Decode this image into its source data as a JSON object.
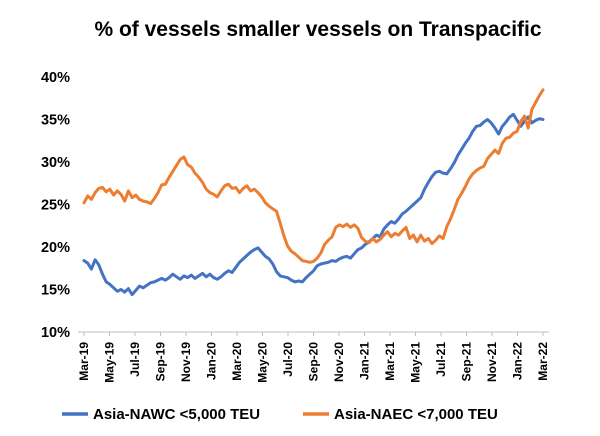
{
  "chart_data": {
    "type": "line",
    "title": "% of vessels smaller vessels on Transpacific",
    "xlabel": "",
    "ylabel": "",
    "ylim": [
      10,
      40
    ],
    "y_ticks": [
      "10%",
      "15%",
      "20%",
      "25%",
      "30%",
      "35%",
      "40%"
    ],
    "y_tick_values": [
      10,
      15,
      20,
      25,
      30,
      35,
      40
    ],
    "x_ticks": [
      "Mar-19",
      "May-19",
      "Jul-19",
      "Sep-19",
      "Nov-19",
      "Jan-20",
      "Mar-20",
      "May-20",
      "Jul-20",
      "Sep-20",
      "Nov-20",
      "Jan-21",
      "Mar-21",
      "May-21",
      "Jul-21",
      "Sep-21",
      "Nov-21",
      "Jan-22",
      "Mar-22"
    ],
    "x_unit": "weeks since Mar-19",
    "grid": false,
    "legend_position": "bottom",
    "series": [
      {
        "name": "Asia-NAWC <5,000 TEU",
        "color": "#4472C4",
        "points": [
          [
            0,
            18.4
          ],
          [
            1,
            18.1
          ],
          [
            2,
            17.4
          ],
          [
            3,
            18.5
          ],
          [
            4,
            17.9
          ],
          [
            5,
            16.8
          ],
          [
            6,
            15.9
          ],
          [
            7,
            15.6
          ],
          [
            8,
            15.2
          ],
          [
            9,
            14.8
          ],
          [
            10,
            15.0
          ],
          [
            11,
            14.7
          ],
          [
            12,
            15.1
          ],
          [
            13,
            14.4
          ],
          [
            14,
            14.9
          ],
          [
            15,
            15.4
          ],
          [
            16,
            15.2
          ],
          [
            17,
            15.5
          ],
          [
            18,
            15.8
          ],
          [
            19,
            15.9
          ],
          [
            20,
            16.1
          ],
          [
            21,
            16.3
          ],
          [
            22,
            16.1
          ],
          [
            23,
            16.4
          ],
          [
            24,
            16.8
          ],
          [
            25,
            16.5
          ],
          [
            26,
            16.2
          ],
          [
            27,
            16.6
          ],
          [
            28,
            16.4
          ],
          [
            29,
            16.7
          ],
          [
            30,
            16.3
          ],
          [
            31,
            16.6
          ],
          [
            32,
            16.9
          ],
          [
            33,
            16.5
          ],
          [
            34,
            16.8
          ],
          [
            35,
            16.4
          ],
          [
            36,
            16.2
          ],
          [
            37,
            16.5
          ],
          [
            38,
            16.9
          ],
          [
            39,
            17.2
          ],
          [
            40,
            17.0
          ],
          [
            41,
            17.6
          ],
          [
            42,
            18.2
          ],
          [
            43,
            18.6
          ],
          [
            44,
            19.0
          ],
          [
            45,
            19.4
          ],
          [
            46,
            19.7
          ],
          [
            47,
            19.9
          ],
          [
            48,
            19.4
          ],
          [
            49,
            18.9
          ],
          [
            50,
            18.6
          ],
          [
            51,
            18.0
          ],
          [
            52,
            17.1
          ],
          [
            53,
            16.6
          ],
          [
            54,
            16.5
          ],
          [
            55,
            16.4
          ],
          [
            56,
            16.1
          ],
          [
            57,
            15.9
          ],
          [
            58,
            16.0
          ],
          [
            59,
            15.9
          ],
          [
            60,
            16.4
          ],
          [
            61,
            16.8
          ],
          [
            62,
            17.2
          ],
          [
            63,
            17.8
          ],
          [
            64,
            18.0
          ],
          [
            65,
            18.1
          ],
          [
            66,
            18.2
          ],
          [
            67,
            18.4
          ],
          [
            68,
            18.3
          ],
          [
            69,
            18.6
          ],
          [
            70,
            18.8
          ],
          [
            71,
            18.9
          ],
          [
            72,
            18.7
          ],
          [
            73,
            19.2
          ],
          [
            74,
            19.7
          ],
          [
            75,
            19.9
          ],
          [
            76,
            20.3
          ],
          [
            77,
            20.6
          ],
          [
            78,
            21.0
          ],
          [
            79,
            21.4
          ],
          [
            80,
            21.2
          ],
          [
            81,
            22.1
          ],
          [
            82,
            22.6
          ],
          [
            83,
            23.0
          ],
          [
            84,
            22.8
          ],
          [
            85,
            23.3
          ],
          [
            86,
            23.9
          ],
          [
            87,
            24.2
          ],
          [
            88,
            24.6
          ],
          [
            89,
            25.0
          ],
          [
            90,
            25.4
          ],
          [
            91,
            25.8
          ],
          [
            92,
            26.8
          ],
          [
            93,
            27.6
          ],
          [
            94,
            28.3
          ],
          [
            95,
            28.8
          ],
          [
            96,
            28.9
          ],
          [
            97,
            28.7
          ],
          [
            98,
            28.6
          ],
          [
            99,
            29.2
          ],
          [
            100,
            29.9
          ],
          [
            101,
            30.8
          ],
          [
            102,
            31.5
          ],
          [
            103,
            32.2
          ],
          [
            104,
            32.8
          ],
          [
            105,
            33.6
          ],
          [
            106,
            34.2
          ],
          [
            107,
            34.3
          ],
          [
            108,
            34.7
          ],
          [
            109,
            35.0
          ],
          [
            110,
            34.6
          ],
          [
            111,
            34.0
          ],
          [
            112,
            33.3
          ],
          [
            113,
            34.2
          ],
          [
            114,
            34.7
          ],
          [
            115,
            35.3
          ],
          [
            116,
            35.6
          ],
          [
            117,
            34.9
          ],
          [
            118,
            34.2
          ],
          [
            119,
            34.8
          ],
          [
            120,
            35.3
          ],
          [
            121,
            34.6
          ],
          [
            122,
            34.9
          ],
          [
            123,
            35.1
          ],
          [
            124,
            35.0
          ]
        ]
      },
      {
        "name": "Asia-NAEC <7,000 TEU",
        "color": "#ED7D31",
        "points": [
          [
            0,
            25.2
          ],
          [
            1,
            26.0
          ],
          [
            2,
            25.6
          ],
          [
            3,
            26.4
          ],
          [
            4,
            26.9
          ],
          [
            5,
            27.0
          ],
          [
            6,
            26.5
          ],
          [
            7,
            26.8
          ],
          [
            8,
            26.1
          ],
          [
            9,
            26.6
          ],
          [
            10,
            26.2
          ],
          [
            11,
            25.4
          ],
          [
            12,
            26.6
          ],
          [
            13,
            25.8
          ],
          [
            14,
            26.1
          ],
          [
            15,
            25.6
          ],
          [
            16,
            25.4
          ],
          [
            17,
            25.3
          ],
          [
            18,
            25.1
          ],
          [
            19,
            25.7
          ],
          [
            20,
            26.4
          ],
          [
            21,
            27.3
          ],
          [
            22,
            27.4
          ],
          [
            23,
            28.2
          ],
          [
            24,
            28.9
          ],
          [
            25,
            29.6
          ],
          [
            26,
            30.3
          ],
          [
            27,
            30.6
          ],
          [
            28,
            29.7
          ],
          [
            29,
            29.4
          ],
          [
            30,
            28.7
          ],
          [
            31,
            28.2
          ],
          [
            32,
            27.6
          ],
          [
            33,
            26.8
          ],
          [
            34,
            26.4
          ],
          [
            35,
            26.2
          ],
          [
            36,
            25.9
          ],
          [
            37,
            26.6
          ],
          [
            38,
            27.2
          ],
          [
            39,
            27.4
          ],
          [
            40,
            26.9
          ],
          [
            41,
            27.0
          ],
          [
            42,
            26.4
          ],
          [
            43,
            26.9
          ],
          [
            44,
            27.2
          ],
          [
            45,
            26.6
          ],
          [
            46,
            26.8
          ],
          [
            47,
            26.4
          ],
          [
            48,
            25.9
          ],
          [
            49,
            25.2
          ],
          [
            50,
            24.8
          ],
          [
            51,
            24.5
          ],
          [
            52,
            24.2
          ],
          [
            53,
            22.8
          ],
          [
            54,
            21.3
          ],
          [
            55,
            20.1
          ],
          [
            56,
            19.5
          ],
          [
            57,
            19.2
          ],
          [
            58,
            18.8
          ],
          [
            59,
            18.4
          ],
          [
            60,
            18.3
          ],
          [
            61,
            18.2
          ],
          [
            62,
            18.3
          ],
          [
            63,
            18.7
          ],
          [
            64,
            19.3
          ],
          [
            65,
            20.3
          ],
          [
            66,
            20.8
          ],
          [
            67,
            21.2
          ],
          [
            68,
            22.3
          ],
          [
            69,
            22.6
          ],
          [
            70,
            22.4
          ],
          [
            71,
            22.7
          ],
          [
            72,
            22.3
          ],
          [
            73,
            22.6
          ],
          [
            74,
            22.2
          ],
          [
            75,
            21.1
          ],
          [
            76,
            20.7
          ],
          [
            77,
            20.5
          ],
          [
            78,
            21.0
          ],
          [
            79,
            20.6
          ],
          [
            80,
            20.9
          ],
          [
            81,
            21.4
          ],
          [
            82,
            21.8
          ],
          [
            83,
            21.2
          ],
          [
            84,
            21.6
          ],
          [
            85,
            21.4
          ],
          [
            86,
            21.9
          ],
          [
            87,
            22.3
          ],
          [
            88,
            21.0
          ],
          [
            89,
            21.4
          ],
          [
            90,
            20.6
          ],
          [
            91,
            21.4
          ],
          [
            92,
            20.7
          ],
          [
            93,
            21.0
          ],
          [
            94,
            20.4
          ],
          [
            95,
            20.8
          ],
          [
            96,
            21.3
          ],
          [
            97,
            21.0
          ],
          [
            98,
            22.4
          ],
          [
            99,
            23.3
          ],
          [
            100,
            24.4
          ],
          [
            101,
            25.6
          ],
          [
            102,
            26.3
          ],
          [
            103,
            27.1
          ],
          [
            104,
            28.0
          ],
          [
            105,
            28.6
          ],
          [
            106,
            29.0
          ],
          [
            107,
            29.3
          ],
          [
            108,
            29.5
          ],
          [
            109,
            30.4
          ],
          [
            110,
            30.9
          ],
          [
            111,
            31.4
          ],
          [
            112,
            31.0
          ],
          [
            113,
            32.2
          ],
          [
            114,
            32.8
          ],
          [
            115,
            32.9
          ],
          [
            116,
            33.4
          ],
          [
            117,
            33.6
          ],
          [
            118,
            34.8
          ],
          [
            119,
            35.4
          ],
          [
            120,
            34.0
          ],
          [
            121,
            36.2
          ],
          [
            122,
            37.0
          ],
          [
            123,
            37.8
          ],
          [
            124,
            38.5
          ]
        ]
      }
    ]
  }
}
